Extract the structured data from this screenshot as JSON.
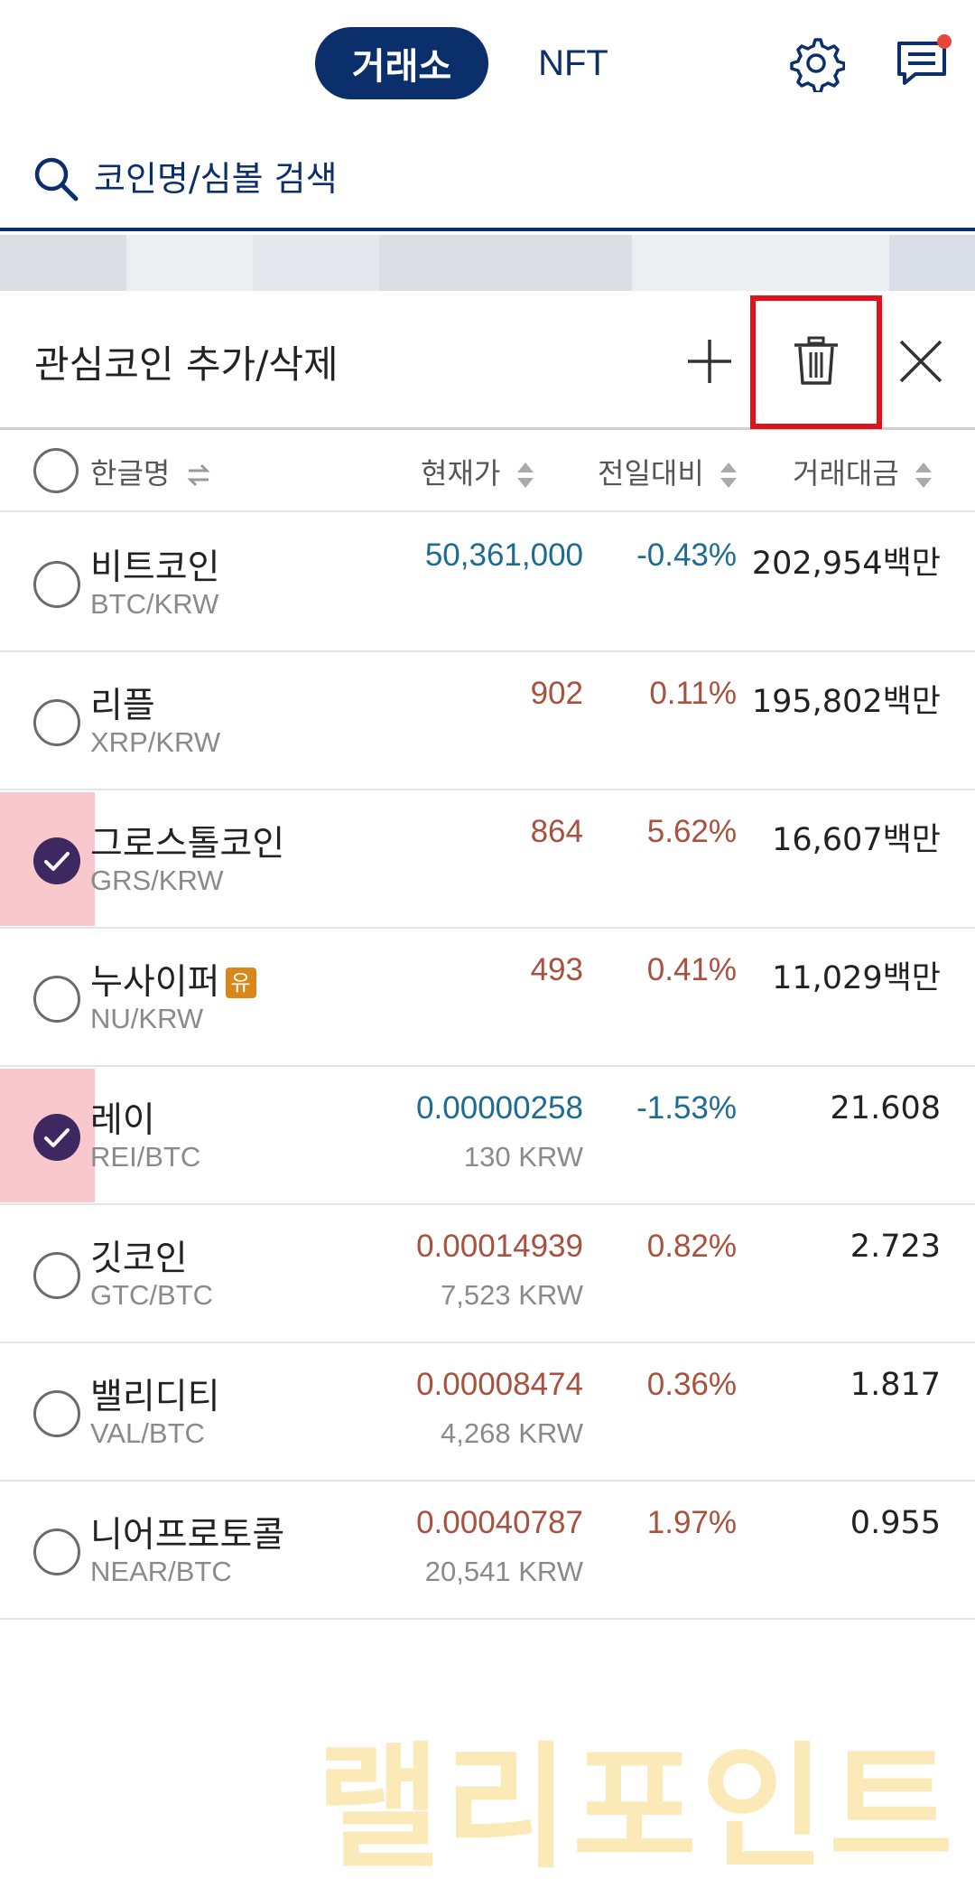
{
  "header": {
    "tabs": [
      {
        "label": "거래소",
        "active": true
      },
      {
        "label": "NFT",
        "active": false
      }
    ],
    "icons": [
      "gear-icon",
      "chat-icon"
    ],
    "has_notification": true
  },
  "search": {
    "placeholder": "코인명/심볼 검색",
    "icon": "search-icon"
  },
  "panel": {
    "title": "관심코인 추가/삭제",
    "buttons": [
      "plus-icon",
      "trash-icon",
      "close-icon"
    ]
  },
  "columns": {
    "name": "한글명",
    "price": "현재가",
    "change": "전일대비",
    "volume": "거래대금"
  },
  "colors": {
    "brand": "#0b2f6b",
    "up": "#a8513f",
    "down": "#1d6b94",
    "selected": "#3e2862",
    "highlight_box": "#e0121a"
  },
  "coins": [
    {
      "name": "비트코인",
      "symbol": "BTC/KRW",
      "price": "50,361,000",
      "subprice": "",
      "change": "-0.43%",
      "volume": "202,954백만",
      "direction": "down",
      "checked": false,
      "badge": ""
    },
    {
      "name": "리플",
      "symbol": "XRP/KRW",
      "price": "902",
      "subprice": "",
      "change": "0.11%",
      "volume": "195,802백만",
      "direction": "up",
      "checked": false,
      "badge": ""
    },
    {
      "name": "그로스톨코인",
      "symbol": "GRS/KRW",
      "price": "864",
      "subprice": "",
      "change": "5.62%",
      "volume": "16,607백만",
      "direction": "up",
      "checked": true,
      "badge": ""
    },
    {
      "name": "누사이퍼",
      "symbol": "NU/KRW",
      "price": "493",
      "subprice": "",
      "change": "0.41%",
      "volume": "11,029백만",
      "direction": "up",
      "checked": false,
      "badge": "유"
    },
    {
      "name": "레이",
      "symbol": "REI/BTC",
      "price": "0.00000258",
      "subprice": "130 KRW",
      "change": "-1.53%",
      "volume": "21.608",
      "direction": "down",
      "checked": true,
      "badge": ""
    },
    {
      "name": "깃코인",
      "symbol": "GTC/BTC",
      "price": "0.00014939",
      "subprice": "7,523 KRW",
      "change": "0.82%",
      "volume": "2.723",
      "direction": "up",
      "checked": false,
      "badge": ""
    },
    {
      "name": "밸리디티",
      "symbol": "VAL/BTC",
      "price": "0.00008474",
      "subprice": "4,268 KRW",
      "change": "0.36%",
      "volume": "1.817",
      "direction": "up",
      "checked": false,
      "badge": ""
    },
    {
      "name": "니어프로토콜",
      "symbol": "NEAR/BTC",
      "price": "0.00040787",
      "subprice": "20,541 KRW",
      "change": "1.97%",
      "volume": "0.955",
      "direction": "up",
      "checked": false,
      "badge": ""
    }
  ],
  "watermark": "랠리포인트"
}
